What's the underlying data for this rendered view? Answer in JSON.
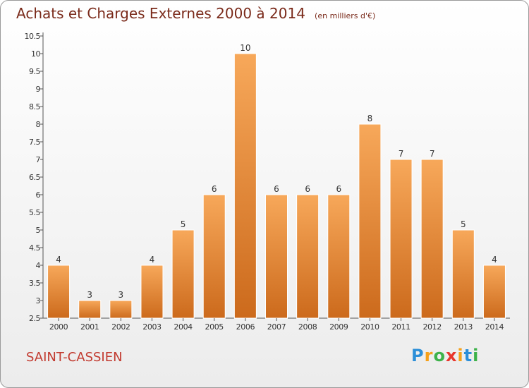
{
  "title": "Achats et Charges Externes 2000 à 2014",
  "unit": "(en milliers d'€)",
  "commune": "SAINT-CASSIEN",
  "brand": {
    "letters": [
      "P",
      "r",
      "o",
      "x",
      "i",
      "t",
      "i"
    ],
    "colors": [
      "#2c8fd8",
      "#f5a11b",
      "#3db24a",
      "#e8362c",
      "#f5a11b",
      "#2c8fd8",
      "#3db24a"
    ]
  },
  "colors": {
    "bar_light": "#f7a85a",
    "bar_dark": "#cc6a1c",
    "title": "#7a2a1a",
    "commune": "#c23a2f"
  },
  "chart_data": {
    "type": "bar",
    "title": "Achats et Charges Externes 2000 à 2014",
    "categories": [
      "2000",
      "2001",
      "2002",
      "2003",
      "2004",
      "2005",
      "2006",
      "2007",
      "2008",
      "2009",
      "2010",
      "2011",
      "2012",
      "2013",
      "2014"
    ],
    "values": [
      4,
      3,
      3,
      4,
      5,
      6,
      10,
      6,
      6,
      6,
      8,
      7,
      7,
      5,
      4
    ],
    "ylim": [
      2.5,
      10.5
    ],
    "yticks": [
      "2.5",
      "3",
      "3.5",
      "4",
      "4.5",
      "5",
      "5.5",
      "6",
      "6.5",
      "7",
      "7.5",
      "8",
      "8.5",
      "9",
      "9.5",
      "10",
      "10.5"
    ],
    "grid": false
  }
}
